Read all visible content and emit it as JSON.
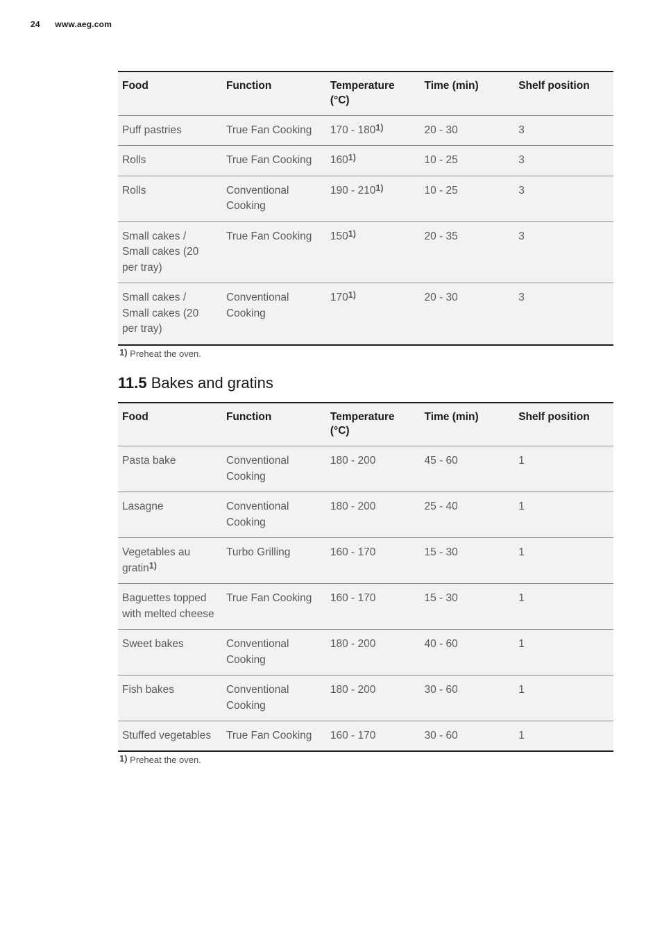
{
  "header": {
    "page_number": "24",
    "site": "www.aeg.com"
  },
  "table1": {
    "columns": [
      "Food",
      "Function",
      "Temperature (°C)",
      "Time (min)",
      "Shelf position"
    ],
    "rows": [
      {
        "food": "Puff pastries",
        "function": "True Fan Cooking",
        "temp_pre": "170 - 180",
        "temp_sup": "1)",
        "time": "20 - 30",
        "shelf": "3"
      },
      {
        "food": "Rolls",
        "function": "True Fan Cooking",
        "temp_pre": "160",
        "temp_sup": "1)",
        "time": "10 - 25",
        "shelf": "3"
      },
      {
        "food": "Rolls",
        "function": "Conventional Cooking",
        "temp_pre": "190 - 210",
        "temp_sup": "1)",
        "time": "10 - 25",
        "shelf": "3"
      },
      {
        "food": "Small cakes / Small cakes (20 per tray)",
        "function": "True Fan Cooking",
        "temp_pre": "150",
        "temp_sup": "1)",
        "time": "20 - 35",
        "shelf": "3"
      },
      {
        "food": "Small cakes / Small cakes (20 per tray)",
        "function": "Conventional Cooking",
        "temp_pre": "170",
        "temp_sup": "1)",
        "time": "20 - 30",
        "shelf": "3"
      }
    ],
    "footnote_sup": "1)",
    "footnote_text": " Preheat the oven."
  },
  "section2": {
    "number": "11.5",
    "title": " Bakes and gratins"
  },
  "table2": {
    "columns": [
      "Food",
      "Function",
      "Temperature (°C)",
      "Time (min)",
      "Shelf position"
    ],
    "rows": [
      {
        "food_pre": "Pasta bake",
        "food_sup": "",
        "function": "Conventional Cooking",
        "temp": "180 - 200",
        "time": "45 - 60",
        "shelf": "1"
      },
      {
        "food_pre": "Lasagne",
        "food_sup": "",
        "function": "Conventional Cooking",
        "temp": "180 - 200",
        "time": "25 - 40",
        "shelf": "1"
      },
      {
        "food_pre": "Vegetables au gratin",
        "food_sup": "1)",
        "function": "Turbo Grilling",
        "temp": "160 - 170",
        "time": "15 - 30",
        "shelf": "1"
      },
      {
        "food_pre": "Baguettes topped with melted cheese",
        "food_sup": "",
        "function": "True Fan Cooking",
        "temp": "160 - 170",
        "time": "15 - 30",
        "shelf": "1"
      },
      {
        "food_pre": "Sweet bakes",
        "food_sup": "",
        "function": "Conventional Cooking",
        "temp": "180 - 200",
        "time": "40 - 60",
        "shelf": "1"
      },
      {
        "food_pre": "Fish bakes",
        "food_sup": "",
        "function": "Conventional Cooking",
        "temp": "180 - 200",
        "time": "30 - 60",
        "shelf": "1"
      },
      {
        "food_pre": "Stuffed vegetables",
        "food_sup": "",
        "function": "True Fan Cooking",
        "temp": "160 - 170",
        "time": "30 - 60",
        "shelf": "1"
      }
    ],
    "footnote_sup": "1)",
    "footnote_text": " Preheat the oven."
  }
}
